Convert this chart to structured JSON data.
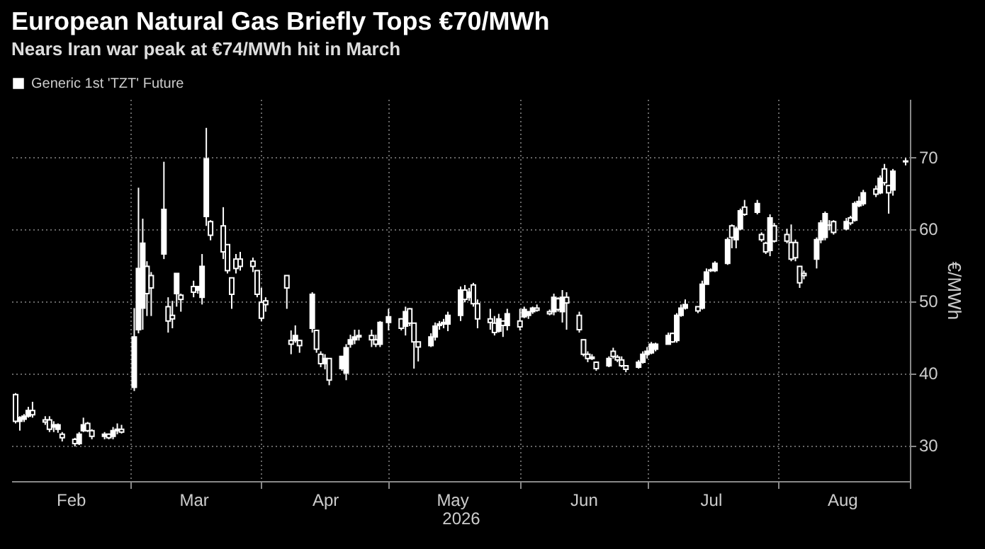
{
  "chart_data": {
    "type": "candlestick",
    "title": "European Natural Gas Briefly Tops €70/MWh",
    "subtitle": "Nears Iran war peak at €74/MWh hit in March",
    "xlabel": "2026",
    "ylabel": "€/MWh",
    "xlim": [
      "2026-02-01",
      "2026-09-01"
    ],
    "xticks": [
      {
        "value": "2026-03-01",
        "label": null
      },
      {
        "value": "2026-04-01",
        "label": null
      },
      {
        "value": "2026-05-01",
        "label": null
      },
      {
        "value": "2026-06-01",
        "label": null
      },
      {
        "value": "2026-07-01",
        "label": null
      },
      {
        "value": "2026-08-01",
        "label": null
      },
      {
        "value": "2026-09-01",
        "label": null
      },
      {
        "value": "2026-02-15",
        "label": "Feb"
      },
      {
        "value": "2026-03-16",
        "label": "Mar"
      },
      {
        "value": "2026-04-16",
        "label": "Apr"
      },
      {
        "value": "2026-05-16",
        "label": "May"
      },
      {
        "value": "2026-06-16",
        "label": "Jun"
      },
      {
        "value": "2026-07-16",
        "label": "Jul"
      },
      {
        "value": "2026-08-16",
        "label": "Aug"
      }
    ],
    "ylim": [
      25,
      78
    ],
    "yticks": [
      30,
      40,
      50,
      60,
      70
    ],
    "grid": true,
    "legend": "top left",
    "series": [
      {
        "name": "Generic 1st 'TZT' Future",
        "color": "#ffffff",
        "x": [
          "2026-02-02",
          "2026-02-03",
          "2026-02-04",
          "2026-02-05",
          "2026-02-06",
          "2026-02-09",
          "2026-02-10",
          "2026-02-11",
          "2026-02-12",
          "2026-02-13",
          "2026-02-16",
          "2026-02-17",
          "2026-02-18",
          "2026-02-19",
          "2026-02-20",
          "2026-02-23",
          "2026-02-24",
          "2026-02-25",
          "2026-02-26",
          "2026-02-27",
          "2026-03-02",
          "2026-03-03",
          "2026-03-04",
          "2026-03-05",
          "2026-03-06",
          "2026-03-09",
          "2026-03-10",
          "2026-03-11",
          "2026-03-12",
          "2026-03-13",
          "2026-03-16",
          "2026-03-17",
          "2026-03-18",
          "2026-03-19",
          "2026-03-20",
          "2026-03-23",
          "2026-03-24",
          "2026-03-25",
          "2026-03-26",
          "2026-03-27",
          "2026-03-30",
          "2026-03-31",
          "2026-04-01",
          "2026-04-02",
          "2026-04-07",
          "2026-04-08",
          "2026-04-09",
          "2026-04-10",
          "2026-04-13",
          "2026-04-14",
          "2026-04-15",
          "2026-04-16",
          "2026-04-17",
          "2026-04-20",
          "2026-04-21",
          "2026-04-22",
          "2026-04-23",
          "2026-04-24",
          "2026-04-27",
          "2026-04-28",
          "2026-04-29",
          "2026-05-01",
          "2026-05-04",
          "2026-05-05",
          "2026-05-06",
          "2026-05-07",
          "2026-05-08",
          "2026-05-11",
          "2026-05-12",
          "2026-05-13",
          "2026-05-14",
          "2026-05-15",
          "2026-05-18",
          "2026-05-19",
          "2026-05-20",
          "2026-05-21",
          "2026-05-22",
          "2026-05-25",
          "2026-05-26",
          "2026-05-27",
          "2026-05-28",
          "2026-05-29",
          "2026-06-01",
          "2026-06-02",
          "2026-06-03",
          "2026-06-04",
          "2026-06-05",
          "2026-06-08",
          "2026-06-09",
          "2026-06-10",
          "2026-06-11",
          "2026-06-12",
          "2026-06-15",
          "2026-06-16",
          "2026-06-17",
          "2026-06-18",
          "2026-06-19",
          "2026-06-22",
          "2026-06-23",
          "2026-06-24",
          "2026-06-25",
          "2026-06-26",
          "2026-06-29",
          "2026-06-30",
          "2026-07-01",
          "2026-07-02",
          "2026-07-03",
          "2026-07-06",
          "2026-07-07",
          "2026-07-08",
          "2026-07-09",
          "2026-07-10",
          "2026-07-13",
          "2026-07-14",
          "2026-07-15",
          "2026-07-16",
          "2026-07-17",
          "2026-07-20",
          "2026-07-21",
          "2026-07-22",
          "2026-07-23",
          "2026-07-24",
          "2026-07-27",
          "2026-07-28",
          "2026-07-29",
          "2026-07-30",
          "2026-07-31",
          "2026-08-03",
          "2026-08-04",
          "2026-08-05",
          "2026-08-06",
          "2026-08-07",
          "2026-08-10",
          "2026-08-11",
          "2026-08-12",
          "2026-08-13",
          "2026-08-14",
          "2026-08-17",
          "2026-08-18",
          "2026-08-19",
          "2026-08-20",
          "2026-08-21",
          "2026-08-24",
          "2026-08-25",
          "2026-08-26",
          "2026-08-27",
          "2026-08-28",
          "2026-08-31"
        ],
        "ohlc": [
          [
            37,
            37.2,
            33,
            33.3
          ],
          [
            33.3,
            34,
            32,
            33.8
          ],
          [
            33.6,
            34.3,
            33.2,
            34
          ],
          [
            34,
            35.3,
            33.8,
            34.8
          ],
          [
            34.8,
            36,
            33.8,
            34.2
          ],
          [
            33.5,
            34,
            32.8,
            33.2
          ],
          [
            33.5,
            34,
            31.8,
            32.2
          ],
          [
            32.5,
            33.3,
            31.8,
            32.8
          ],
          [
            32.2,
            33,
            31.7,
            32.8
          ],
          [
            31.5,
            31.8,
            30.5,
            31
          ],
          [
            30.8,
            31,
            29.8,
            30.2
          ],
          [
            30.2,
            31.8,
            30,
            31.5
          ],
          [
            32,
            33.8,
            31.8,
            32.8
          ],
          [
            33,
            33.2,
            31.8,
            32
          ],
          [
            32,
            32.2,
            30.8,
            31.2
          ],
          [
            31.2,
            31.8,
            30.8,
            31.5
          ],
          [
            31.5,
            31.6,
            30.8,
            31
          ],
          [
            31.2,
            32.5,
            30.8,
            32
          ],
          [
            32,
            33,
            31.5,
            32.2
          ],
          [
            32.2,
            32.8,
            31.6,
            31.8
          ],
          [
            38,
            49,
            37.5,
            45
          ],
          [
            46,
            65.7,
            45.5,
            54.5
          ],
          [
            49,
            61.4,
            46,
            58
          ],
          [
            54.8,
            55.5,
            47.9,
            51
          ],
          [
            53.5,
            54,
            47.9,
            51.8
          ],
          [
            56.5,
            69.3,
            55.8,
            62.7
          ],
          [
            49.2,
            50.5,
            45.6,
            47.2
          ],
          [
            48,
            50,
            46.2,
            47.5
          ],
          [
            51,
            53.8,
            49.2,
            53.8
          ],
          [
            50.8,
            51,
            48.5,
            50.2
          ],
          [
            52,
            52.8,
            50.5,
            51.2
          ],
          [
            51.5,
            52,
            51,
            52
          ],
          [
            50.5,
            56.5,
            49.5,
            54.8
          ],
          [
            61.7,
            74,
            60.4,
            69.7
          ],
          [
            61,
            61.2,
            58.4,
            59.1
          ],
          [
            60.4,
            63,
            55.8,
            56.8
          ],
          [
            57.8,
            57.8,
            53.8,
            54.2
          ],
          [
            53.2,
            53.2,
            48.9,
            50.9
          ],
          [
            55.8,
            56.5,
            53.8,
            54.5
          ],
          [
            55.8,
            56.8,
            54.2,
            54.8
          ],
          [
            55.5,
            56,
            54,
            54.8
          ],
          [
            54.2,
            54.2,
            50.5,
            50.9
          ],
          [
            49.8,
            51.8,
            47.2,
            47.6
          ],
          [
            50,
            50.5,
            48.5,
            49.5
          ],
          [
            53.5,
            53.5,
            48.9,
            51.8
          ],
          [
            44.5,
            45.9,
            42.6,
            44
          ],
          [
            44.5,
            46.6,
            44.2,
            45.2
          ],
          [
            44.5,
            44.6,
            42.8,
            43.8
          ],
          [
            46.2,
            51.2,
            45.6,
            50.9
          ],
          [
            45.9,
            46,
            42.8,
            43.3
          ],
          [
            42.6,
            43,
            40.8,
            41.3
          ],
          [
            41.3,
            42.6,
            40.5,
            42
          ],
          [
            42,
            42,
            38.3,
            39
          ],
          [
            40.6,
            42.3,
            40.3,
            42.3
          ],
          [
            40,
            44,
            39,
            43.5
          ],
          [
            44,
            45.3,
            43.5,
            44.6
          ],
          [
            44.6,
            46,
            44,
            45
          ],
          [
            45,
            46,
            44.5,
            45.2
          ],
          [
            45.2,
            46,
            43.6,
            44.6
          ],
          [
            44.6,
            45.3,
            43.6,
            44
          ],
          [
            44,
            47.2,
            43.6,
            47
          ],
          [
            47,
            48.9,
            45.9,
            47.8
          ],
          [
            47.5,
            47.6,
            45.9,
            46.2
          ],
          [
            46.5,
            49.2,
            45.2,
            48.5
          ],
          [
            48.9,
            49,
            46.5,
            46.9
          ],
          [
            46.9,
            46.9,
            40.6,
            44.3
          ],
          [
            44.3,
            44.3,
            41.6,
            43.6
          ],
          [
            43.8,
            45.5,
            43.6,
            45
          ],
          [
            45,
            47,
            44.5,
            46.5
          ],
          [
            46.6,
            47.2,
            46,
            46.8
          ],
          [
            46.8,
            47.5,
            46.2,
            47
          ],
          [
            46.8,
            48.5,
            45.8,
            48
          ],
          [
            48,
            52,
            47.2,
            51.5
          ],
          [
            51.5,
            52.2,
            49.8,
            50.2
          ],
          [
            50.5,
            51.8,
            50,
            51.2
          ],
          [
            52.2,
            52.5,
            49.2,
            49.6
          ],
          [
            49.6,
            50.2,
            46.2,
            47.5
          ],
          [
            47.5,
            48.9,
            46,
            47
          ],
          [
            46.9,
            47.9,
            45.2,
            45.6
          ],
          [
            45.8,
            48.2,
            45.6,
            47.5
          ],
          [
            47.2,
            47.2,
            45,
            46.6
          ],
          [
            46.6,
            48.9,
            45.9,
            48.2
          ],
          [
            47.2,
            48.9,
            45.9,
            46.4
          ],
          [
            47.8,
            49.2,
            47.6,
            48.8
          ],
          [
            48,
            48.5,
            47.5,
            48.5
          ],
          [
            48.5,
            49.2,
            48.2,
            49
          ],
          [
            49,
            49.5,
            48.5,
            48.7
          ],
          [
            48.5,
            48.8,
            48,
            48.2
          ],
          [
            48.5,
            51,
            48,
            50.5
          ],
          [
            50.3,
            50.5,
            48.5,
            48.8
          ],
          [
            48.5,
            51.5,
            47,
            50.5
          ],
          [
            50.5,
            51.2,
            46,
            49.7
          ],
          [
            48,
            48.5,
            45.6,
            46
          ],
          [
            44.6,
            44.6,
            42.3,
            42.6
          ],
          [
            42.6,
            43,
            41.5,
            42
          ],
          [
            42.2,
            42.6,
            41.8,
            42
          ],
          [
            41.5,
            41.6,
            40.3,
            40.6
          ],
          [
            41,
            42.3,
            40.8,
            42
          ],
          [
            43,
            43.5,
            42,
            42.3
          ],
          [
            42.2,
            42.5,
            41.5,
            41.8
          ],
          [
            41.8,
            42.3,
            40.8,
            41
          ],
          [
            41,
            41,
            40.1,
            40.5
          ],
          [
            40.8,
            41.8,
            40.6,
            41.5
          ],
          [
            41.5,
            43,
            41.3,
            42.6
          ],
          [
            42.6,
            43.6,
            42,
            43
          ],
          [
            42.8,
            44.3,
            42.6,
            44
          ],
          [
            43.3,
            44.2,
            43,
            44
          ],
          [
            44,
            45.6,
            44,
            45.2
          ],
          [
            45.5,
            45.6,
            44.2,
            44.3
          ],
          [
            44.5,
            48.3,
            44.2,
            48
          ],
          [
            48,
            49.5,
            47.8,
            49
          ],
          [
            49,
            50.2,
            48.8,
            49.5
          ],
          [
            49.2,
            49.2,
            48.3,
            48.6
          ],
          [
            49,
            52.8,
            48.8,
            52.3
          ],
          [
            52.3,
            54.5,
            52.3,
            54
          ],
          [
            54.2,
            54.5,
            54,
            54.3
          ],
          [
            54.2,
            55.5,
            54,
            55.2
          ],
          [
            55.2,
            58.8,
            55,
            58.5
          ],
          [
            60.4,
            60.6,
            57.3,
            58.8
          ],
          [
            58.5,
            60.3,
            57.3,
            60
          ],
          [
            60,
            62.8,
            59.8,
            62.5
          ],
          [
            63,
            64,
            61.8,
            62
          ],
          [
            62.3,
            64,
            62,
            63.5
          ],
          [
            59.2,
            59.5,
            58.2,
            58.5
          ],
          [
            58,
            58.2,
            56.5,
            56.8
          ],
          [
            57,
            62,
            56.2,
            61.5
          ],
          [
            60.4,
            60.8,
            58.1,
            58.3
          ],
          [
            59.2,
            60,
            58,
            58.3
          ],
          [
            58.1,
            60.6,
            55.5,
            55.8
          ],
          [
            58.1,
            58.5,
            55.5,
            56
          ],
          [
            54.8,
            54.8,
            51.8,
            52.5
          ],
          [
            53.8,
            54.2,
            53,
            53.5
          ],
          [
            55.8,
            58.8,
            54.5,
            58.5
          ],
          [
            58.5,
            61.2,
            58,
            60.8
          ],
          [
            58.8,
            62.4,
            58.4,
            62.1
          ],
          [
            60.5,
            61.2,
            59.8,
            60.5
          ],
          [
            61,
            61.2,
            59.2,
            59.5
          ],
          [
            60,
            61.5,
            59.8,
            61
          ],
          [
            61.5,
            61.8,
            60.5,
            60.8
          ],
          [
            61.2,
            63.8,
            61,
            63.5
          ],
          [
            63.2,
            64.5,
            63,
            63.8
          ],
          [
            63.5,
            65.4,
            63.2,
            65
          ],
          [
            65.5,
            66,
            64.4,
            64.8
          ],
          [
            65,
            67.4,
            64.8,
            67
          ],
          [
            68.3,
            69,
            66,
            66.4
          ],
          [
            66,
            66,
            62.1,
            65
          ],
          [
            65.4,
            68.3,
            64.6,
            68
          ],
          [
            69.3,
            69.8,
            68.8,
            69.4
          ]
        ]
      }
    ]
  }
}
